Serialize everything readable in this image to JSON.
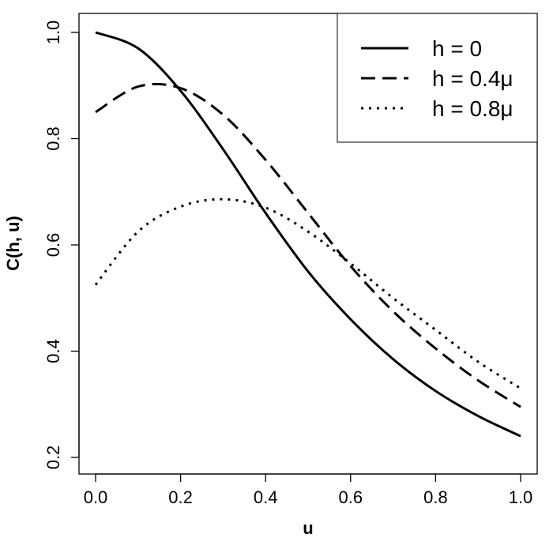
{
  "chart_data": {
    "type": "line",
    "title": "",
    "xlabel": "u",
    "ylabel": "C(h, u)",
    "xlim": [
      0.0,
      1.0
    ],
    "ylim": [
      0.2,
      1.0
    ],
    "x_ticks": [
      0.0,
      0.2,
      0.4,
      0.6,
      0.8,
      1.0
    ],
    "x_tick_labels": [
      "0.0",
      "0.2",
      "0.4",
      "0.6",
      "0.8",
      "1.0"
    ],
    "y_ticks": [
      0.2,
      0.4,
      0.6,
      0.8,
      1.0
    ],
    "y_tick_labels": [
      "0.2",
      "0.4",
      "0.6",
      "0.8",
      "1.0"
    ],
    "grid": false,
    "legend_position": "top-right",
    "x": [
      0.0,
      0.1,
      0.2,
      0.3,
      0.4,
      0.5,
      0.6,
      0.7,
      0.8,
      0.9,
      1.0
    ],
    "series": [
      {
        "name": "h = 0",
        "style": "solid",
        "values": [
          1.0,
          0.97,
          0.89,
          0.78,
          0.66,
          0.55,
          0.46,
          0.385,
          0.325,
          0.278,
          0.24
        ]
      },
      {
        "name": "h = 0.4μ",
        "style": "dashed",
        "values": [
          0.85,
          0.898,
          0.895,
          0.845,
          0.76,
          0.66,
          0.56,
          0.475,
          0.405,
          0.345,
          0.295
        ]
      },
      {
        "name": "h = 0.8μ",
        "style": "dotted",
        "values": [
          0.525,
          0.625,
          0.672,
          0.686,
          0.67,
          0.625,
          0.565,
          0.5,
          0.44,
          0.38,
          0.33
        ]
      }
    ]
  }
}
